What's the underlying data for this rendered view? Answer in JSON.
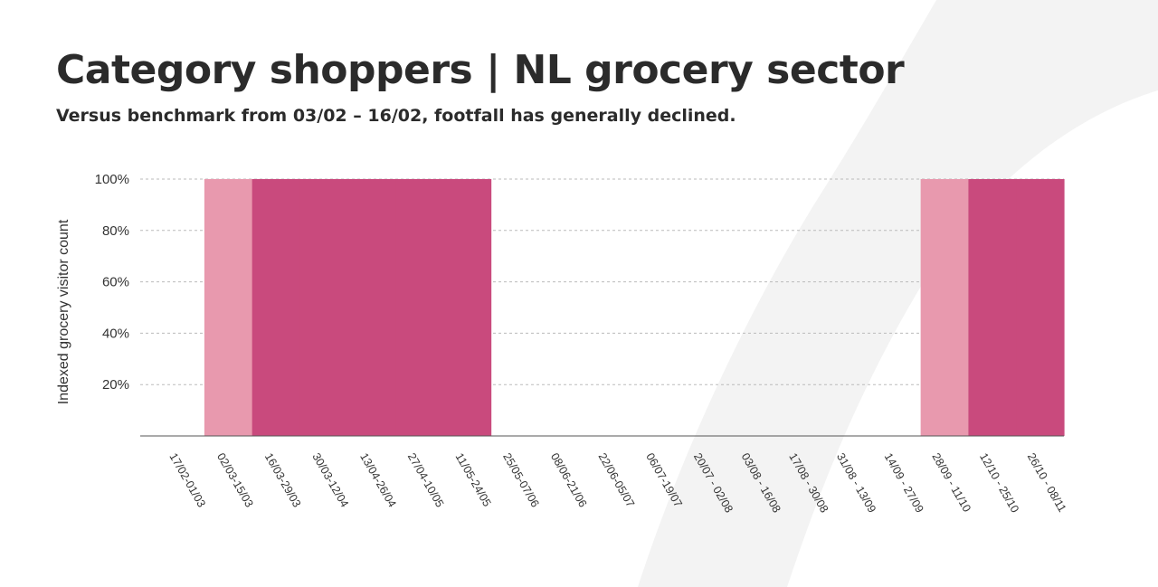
{
  "header": {
    "title": "Category shoppers | NL grocery sector",
    "subtitle": "Versus benchmark from 03/02 – 16/02, footfall has generally declined."
  },
  "colors": {
    "background": "#ffffff",
    "swoosh": "#f3f3f3",
    "bar_light": "#e899ae",
    "bar_dark": "#c94a7d",
    "grid": "#bbbbbb",
    "axis": "#555555",
    "text": "#2b2b2b"
  },
  "chart_data": {
    "type": "bar",
    "title": "Category shoppers | NL grocery sector",
    "subtitle": "Versus benchmark from 03/02 – 16/02, footfall has generally declined.",
    "xlabel": "",
    "ylabel": "Indexed grocery visitor count",
    "ylim": [
      0,
      100
    ],
    "yticks": [
      "20%",
      "40%",
      "60%",
      "80%",
      "100%"
    ],
    "ytick_values": [
      20,
      40,
      60,
      80,
      100
    ],
    "grid": true,
    "legend": "none",
    "categories": [
      "17/02-01/03",
      "02/03-15/03",
      "16/03-29/03",
      "30/03-12/04",
      "13/04-26/04",
      "27/04-10/05",
      "11/05-24/05",
      "25/05-07/06",
      "08/06-21/06",
      "22/06-05/07",
      "06/07-19/07",
      "20/07 - 02/08",
      "03/08 - 16/08",
      "17/08 - 30/08",
      "31/08 - 13/09",
      "14/09 - 27/09",
      "28/09 - 11/10",
      "12/10 - 25/10",
      "26/10 - 08/11"
    ],
    "values": [
      0,
      100,
      100,
      100,
      100,
      100,
      100,
      0,
      0,
      0,
      0,
      0,
      0,
      0,
      0,
      0,
      100,
      100,
      100
    ],
    "bar_colors": [
      "#e899ae",
      "#e899ae",
      "#c94a7d",
      "#c94a7d",
      "#c94a7d",
      "#c94a7d",
      "#c94a7d",
      "#c94a7d",
      "#c94a7d",
      "#c94a7d",
      "#c94a7d",
      "#c94a7d",
      "#c94a7d",
      "#c94a7d",
      "#c94a7d",
      "#e899ae",
      "#e899ae",
      "#c94a7d",
      "#c94a7d"
    ]
  }
}
